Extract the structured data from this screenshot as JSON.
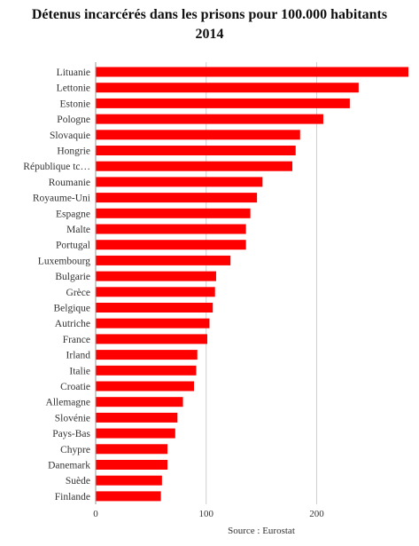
{
  "chart_data": {
    "type": "bar",
    "orientation": "horizontal",
    "title": "Détenus incarcérés dans les prisons pour 100.000 habitants",
    "subtitle": "2014",
    "source": "Source : Eurostat",
    "xlim": [
      0,
      283
    ],
    "xticks": [
      "0",
      "100",
      "200"
    ],
    "grid": true,
    "bar_color": "#ff0000",
    "categories": [
      "Lituanie",
      "Lettonie",
      "Estonie",
      "Pologne",
      "Slovaquie",
      "Hongrie",
      "République tc…",
      "Roumanie",
      "Royaume-Uni",
      "Espagne",
      "Malte",
      "Portugal",
      "Luxembourg",
      "Bulgarie",
      "Grèce",
      "Belgique",
      "Autriche",
      "France",
      "Irland",
      "Italie",
      "Croatie",
      "Allemagne",
      "Slovénie",
      "Pays-Bas",
      "Chypre",
      "Danemark",
      "Suède",
      "Finlande"
    ],
    "values": [
      283,
      238,
      230,
      206,
      185,
      181,
      178,
      151,
      146,
      140,
      136,
      136,
      122,
      109,
      108,
      106,
      103,
      101,
      92,
      91,
      89,
      79,
      74,
      72,
      65,
      65,
      60,
      59
    ]
  }
}
